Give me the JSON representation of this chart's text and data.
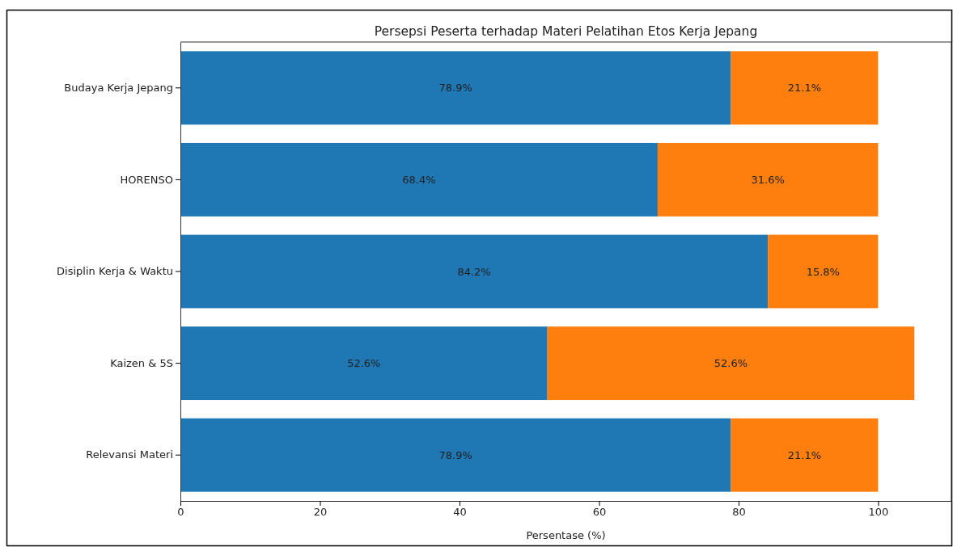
{
  "chart_data": {
    "type": "bar",
    "orientation": "horizontal",
    "stacked": true,
    "title": "Persepsi Peserta terhadap Materi Pelatihan Etos Kerja Jepang",
    "xlabel": "Persentase (%)",
    "categories": [
      "Budaya Kerja Jepang",
      "HORENSO",
      "Disiplin Kerja & Waktu",
      "Kaizen & 5S",
      "Relevansi Materi"
    ],
    "series": [
      {
        "color": "#1f77b4",
        "values": [
          78.9,
          68.4,
          84.2,
          52.6,
          78.9
        ],
        "value_labels": [
          "78.9%",
          "68.4%",
          "84.2%",
          "52.6%",
          "78.9%"
        ]
      },
      {
        "color": "#ff7f0e",
        "values": [
          21.1,
          31.6,
          15.8,
          52.6,
          21.1
        ],
        "value_labels": [
          "21.1%",
          "31.6%",
          "15.8%",
          "52.6%",
          "21.1%"
        ]
      }
    ],
    "xlim": [
      0,
      110.5
    ],
    "xticks": [
      0,
      20,
      40,
      60,
      80,
      100
    ],
    "grid": false
  }
}
